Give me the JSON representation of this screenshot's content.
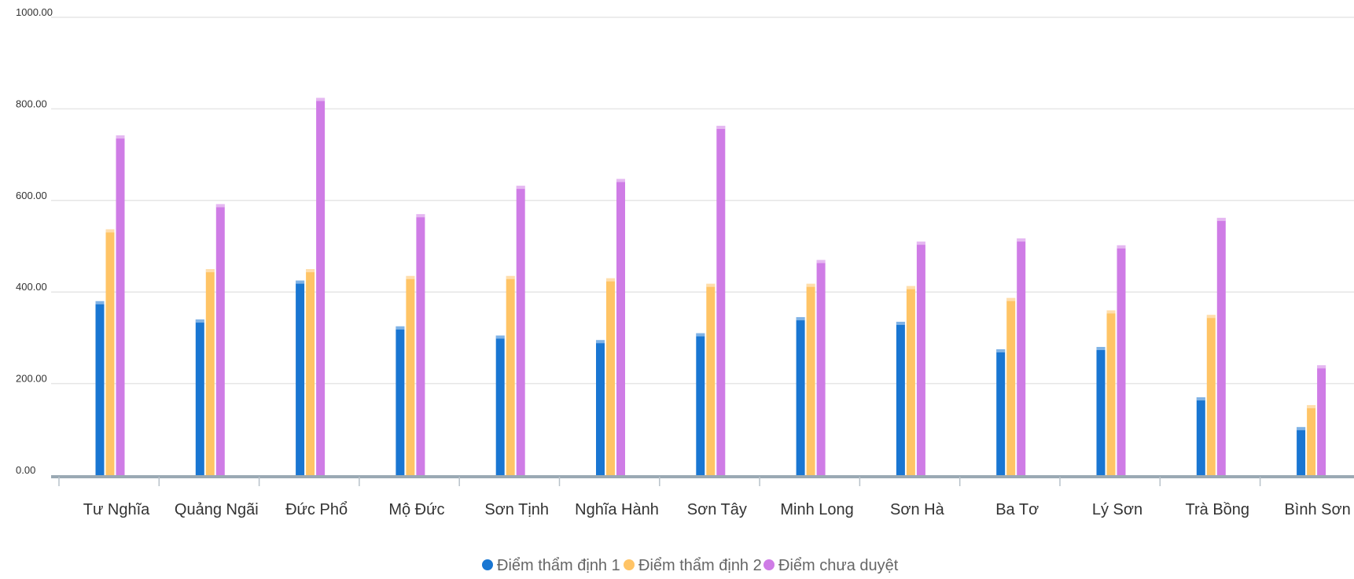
{
  "chart_data": {
    "type": "bar",
    "categories": [
      "Tư Nghĩa",
      "Quảng Ngãi",
      "Đức Phổ",
      "Mộ Đức",
      "Sơn Tịnh",
      "Nghĩa Hành",
      "Sơn Tây",
      "Minh Long",
      "Sơn Hà",
      "Ba Tơ",
      "Lý Sơn",
      "Trà Bồng",
      "Bình Sơn"
    ],
    "series": [
      {
        "name": "Điểm thẩm định 1",
        "color": "#1976d2",
        "values": [
          380,
          340,
          425,
          325,
          305,
          295,
          310,
          345,
          335,
          275,
          280,
          170,
          105
        ]
      },
      {
        "name": "Điểm thẩm định 2",
        "color": "#ffc466",
        "values": [
          537,
          450,
          450,
          435,
          435,
          430,
          418,
          418,
          413,
          387,
          360,
          350,
          153
        ]
      },
      {
        "name": "Điểm chưa duyệt",
        "color": "#cf7ce6",
        "values": [
          742,
          592,
          824,
          570,
          632,
          647,
          763,
          470,
          510,
          517,
          502,
          562,
          240
        ]
      }
    ],
    "yticks": [
      "0.00",
      "200.00",
      "400.00",
      "600.00",
      "800.00",
      "1000.00"
    ],
    "ylim": [
      0,
      1000
    ],
    "grid": true,
    "legend_position": "bottom-center",
    "title": "",
    "xlabel": "",
    "ylabel": ""
  }
}
